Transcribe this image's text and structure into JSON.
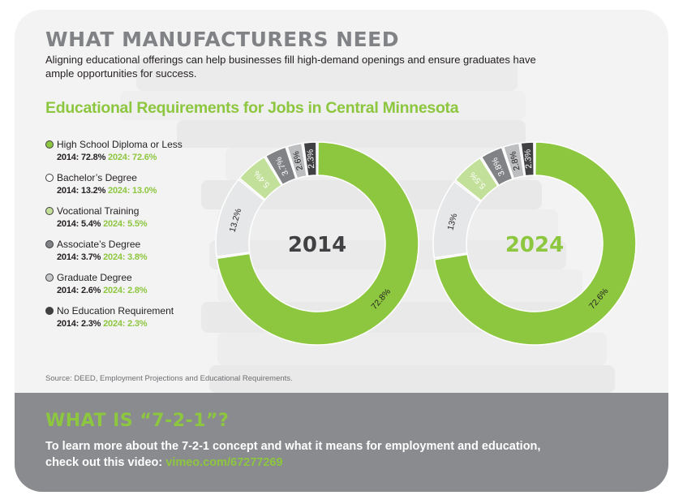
{
  "header": {
    "title": "WHAT MANUFACTURERS NEED",
    "subtitle": "Aligning educational offerings can help businesses fill high-demand openings and ensure graduates have ample opportunities for success."
  },
  "legend": [
    {
      "name": "High School Diploma or Less",
      "label2014": "2014: 72.8%",
      "label2024": "2024: 72.6%",
      "color": "#8dc63f"
    },
    {
      "name": "Bachelor’s Degree",
      "label2014": "2014: 13.2%",
      "label2024": "2024: 13.0%",
      "color": "#ffffff"
    },
    {
      "name": "Vocational Training",
      "label2014": "2014: 5.4%",
      "label2024": "2024: 5.5%",
      "color": "#c2e09a"
    },
    {
      "name": "Associate’s Degree",
      "label2014": "2014: 3.7%",
      "label2024": "2024: 3.8%",
      "color": "#808285"
    },
    {
      "name": "Graduate Degree",
      "label2014": "2014:  2.6%",
      "label2024": "2024: 2.8%",
      "color": "#c7c8ca"
    },
    {
      "name": "No Education Requirement",
      "label2014": "2014: 2.3%",
      "label2024": "2024: 2.3%",
      "color": "#414042"
    }
  ],
  "chart_data": {
    "type": "pie",
    "title": "Educational Requirements for Jobs in Central Minnesota",
    "categories": [
      "High School Diploma or Less",
      "Bachelor’s Degree",
      "Vocational Training",
      "Associate’s Degree",
      "Graduate Degree",
      "No Education Requirement"
    ],
    "series": [
      {
        "name": "2014",
        "values": [
          72.8,
          13.2,
          5.4,
          3.7,
          2.6,
          2.3
        ],
        "labels": [
          "72.8%",
          "13.2%",
          "5.4%",
          "3.7%",
          "2.6%",
          "2.3%"
        ],
        "center_color": "#414042"
      },
      {
        "name": "2024",
        "values": [
          72.6,
          13.0,
          5.5,
          3.8,
          2.8,
          2.3
        ],
        "labels": [
          "72.6%",
          "13%",
          "5.5%",
          "3.8%",
          "2.8%",
          "2.3%"
        ],
        "center_color": "#8dc63f"
      }
    ],
    "slice_colors": [
      "#8dc63f",
      "#e6e7e8",
      "#c2e09a",
      "#808285",
      "#bcbec0",
      "#414042"
    ],
    "source": "Source: DEED, Employment Projections and Educational Requirements."
  },
  "footer": {
    "title": "WHAT IS “7-2-1”?",
    "text": "To learn more about the 7-2-1 concept and what it means for employment and education, check out this video: ",
    "link": "vimeo.com/67277269"
  }
}
